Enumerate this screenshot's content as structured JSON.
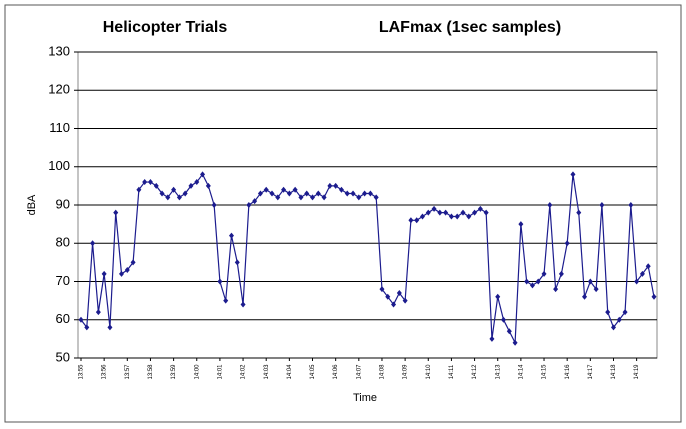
{
  "chart_data": {
    "type": "line",
    "title": "Helicopter Trials",
    "subtitle": "LAFmax (1sec samples)",
    "y_label": "dBA",
    "x_label": "Time",
    "categories": [
      "13:55",
      null,
      null,
      null,
      "13:56",
      null,
      null,
      null,
      "13:57",
      null,
      null,
      null,
      "13:58",
      null,
      null,
      null,
      "13:59",
      null,
      null,
      null,
      "14:00",
      null,
      null,
      null,
      "14:01",
      null,
      null,
      null,
      "14:02",
      null,
      null,
      null,
      "14:03",
      null,
      null,
      null,
      "14:04",
      null,
      null,
      null,
      "14:05",
      null,
      null,
      null,
      "14:06",
      null,
      null,
      null,
      "14:07",
      null,
      null,
      null,
      "14:08",
      null,
      null,
      null,
      "14:09",
      null,
      null,
      null,
      "14:10",
      null,
      null,
      null,
      "14:11",
      null,
      null,
      null,
      "14:12",
      null,
      null,
      null,
      "14:13",
      null,
      null,
      null,
      "14:14",
      null,
      null,
      null,
      "14:15",
      null,
      null,
      null,
      "14:16",
      null,
      null,
      null,
      "14:17",
      null,
      null,
      null,
      "14:18",
      null,
      null,
      null,
      "14:19",
      null,
      null,
      null
    ],
    "series": [
      {
        "name": "LAFmax",
        "color": "#1c1c8e",
        "values": [
          60,
          58,
          80,
          62,
          72,
          58,
          88,
          72,
          73,
          75,
          94,
          96,
          96,
          95,
          93,
          92,
          94,
          92,
          93,
          95,
          96,
          98,
          95,
          90,
          70,
          65,
          82,
          75,
          64,
          90,
          91,
          93,
          94,
          93,
          92,
          94,
          93,
          94,
          92,
          93,
          92,
          93,
          92,
          95,
          95,
          94,
          93,
          93,
          92,
          93,
          93,
          92,
          68,
          66,
          64,
          67,
          65,
          86,
          86,
          87,
          88,
          89,
          88,
          88,
          87,
          87,
          88,
          87,
          88,
          89,
          88,
          55,
          66,
          60,
          57,
          54,
          85,
          70,
          69,
          70,
          72,
          90,
          68,
          72,
          80,
          98,
          88,
          66,
          70,
          68,
          90,
          62,
          58,
          60,
          62,
          90,
          70,
          72,
          74,
          66
        ]
      }
    ],
    "ylim": [
      50,
      130
    ],
    "yticks": [
      50,
      60,
      70,
      80,
      90,
      100,
      110,
      120,
      130
    ],
    "grid": true
  }
}
